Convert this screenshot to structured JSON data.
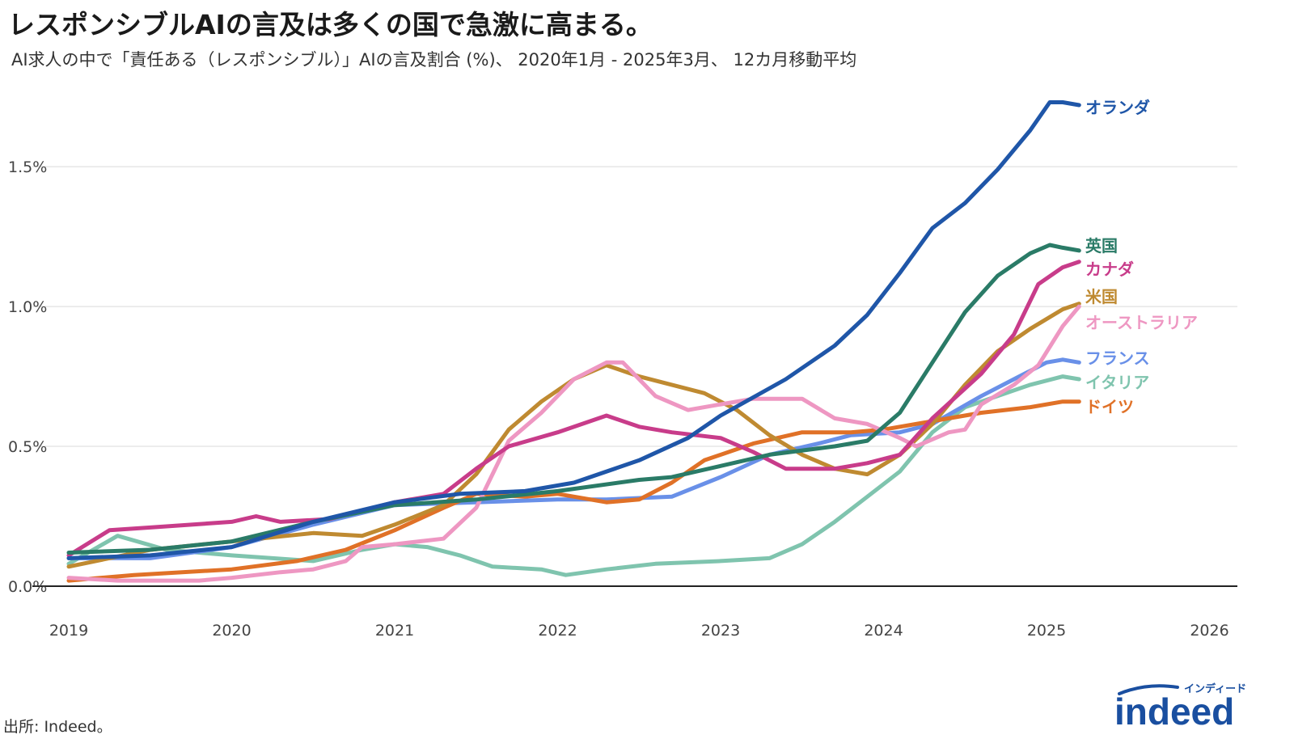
{
  "title": "レスポンシブルAIの言及は多くの国で急激に高まる。",
  "subtitle": "AI求人の中で「責任ある（レスポンシブル）」AIの言及割合 (%)、 2020年1月 - 2025年3月、 12カ月移動平均",
  "source": "出所: Indeed。",
  "logo": {
    "text": "indeed",
    "kana": "インディード",
    "color": "#1a4fa0"
  },
  "chart_data": {
    "type": "line",
    "x_ticks": [
      "2019",
      "2020",
      "2021",
      "2022",
      "2023",
      "2024",
      "2025",
      "2026"
    ],
    "y_ticks": [
      {
        "value": 0.0,
        "label": "0.0%"
      },
      {
        "value": 0.5,
        "label": "0.5%"
      },
      {
        "value": 1.0,
        "label": "1.0%"
      },
      {
        "value": 1.5,
        "label": "1.5%"
      }
    ],
    "xlim": [
      2019.0,
      2026.2
    ],
    "ylim": [
      0,
      1.8
    ],
    "grid": true,
    "legend": "direct labels at line ends",
    "series": [
      {
        "name": "オランダ",
        "color": "#1f56a8",
        "points": [
          [
            2019.0,
            0.1
          ],
          [
            2019.5,
            0.11
          ],
          [
            2020.0,
            0.14
          ],
          [
            2020.5,
            0.23
          ],
          [
            2021.0,
            0.3
          ],
          [
            2021.4,
            0.33
          ],
          [
            2021.8,
            0.34
          ],
          [
            2022.1,
            0.37
          ],
          [
            2022.5,
            0.45
          ],
          [
            2022.8,
            0.53
          ],
          [
            2023.0,
            0.61
          ],
          [
            2023.4,
            0.74
          ],
          [
            2023.7,
            0.86
          ],
          [
            2023.9,
            0.97
          ],
          [
            2024.1,
            1.12
          ],
          [
            2024.3,
            1.28
          ],
          [
            2024.5,
            1.37
          ],
          [
            2024.7,
            1.49
          ],
          [
            2024.9,
            1.63
          ],
          [
            2025.02,
            1.73
          ],
          [
            2025.1,
            1.73
          ],
          [
            2025.2,
            1.72
          ]
        ]
      },
      {
        "name": "英国",
        "color": "#2a7b67",
        "points": [
          [
            2019.0,
            0.12
          ],
          [
            2019.5,
            0.13
          ],
          [
            2020.0,
            0.16
          ],
          [
            2020.5,
            0.23
          ],
          [
            2021.0,
            0.29
          ],
          [
            2021.5,
            0.31
          ],
          [
            2022.0,
            0.34
          ],
          [
            2022.5,
            0.38
          ],
          [
            2022.7,
            0.39
          ],
          [
            2023.0,
            0.43
          ],
          [
            2023.3,
            0.47
          ],
          [
            2023.7,
            0.5
          ],
          [
            2023.9,
            0.52
          ],
          [
            2024.1,
            0.62
          ],
          [
            2024.3,
            0.8
          ],
          [
            2024.5,
            0.98
          ],
          [
            2024.7,
            1.11
          ],
          [
            2024.9,
            1.19
          ],
          [
            2025.02,
            1.22
          ],
          [
            2025.1,
            1.21
          ],
          [
            2025.2,
            1.2
          ]
        ]
      },
      {
        "name": "カナダ",
        "color": "#c83c8a",
        "points": [
          [
            2019.0,
            0.11
          ],
          [
            2019.25,
            0.2
          ],
          [
            2019.5,
            0.21
          ],
          [
            2020.0,
            0.23
          ],
          [
            2020.15,
            0.25
          ],
          [
            2020.3,
            0.23
          ],
          [
            2020.6,
            0.24
          ],
          [
            2020.8,
            0.27
          ],
          [
            2021.0,
            0.3
          ],
          [
            2021.3,
            0.33
          ],
          [
            2021.5,
            0.42
          ],
          [
            2021.7,
            0.5
          ],
          [
            2022.0,
            0.55
          ],
          [
            2022.3,
            0.61
          ],
          [
            2022.5,
            0.57
          ],
          [
            2022.7,
            0.55
          ],
          [
            2023.0,
            0.53
          ],
          [
            2023.2,
            0.48
          ],
          [
            2023.4,
            0.42
          ],
          [
            2023.7,
            0.42
          ],
          [
            2023.9,
            0.44
          ],
          [
            2024.1,
            0.47
          ],
          [
            2024.3,
            0.6
          ],
          [
            2024.6,
            0.76
          ],
          [
            2024.8,
            0.9
          ],
          [
            2024.95,
            1.08
          ],
          [
            2025.1,
            1.14
          ],
          [
            2025.2,
            1.16
          ]
        ]
      },
      {
        "name": "米国",
        "color": "#bf8a31",
        "points": [
          [
            2019.0,
            0.07
          ],
          [
            2019.5,
            0.13
          ],
          [
            2020.0,
            0.16
          ],
          [
            2020.5,
            0.19
          ],
          [
            2020.8,
            0.18
          ],
          [
            2021.0,
            0.22
          ],
          [
            2021.3,
            0.29
          ],
          [
            2021.5,
            0.4
          ],
          [
            2021.7,
            0.56
          ],
          [
            2021.9,
            0.66
          ],
          [
            2022.1,
            0.74
          ],
          [
            2022.3,
            0.79
          ],
          [
            2022.5,
            0.75
          ],
          [
            2022.7,
            0.72
          ],
          [
            2022.9,
            0.69
          ],
          [
            2023.1,
            0.63
          ],
          [
            2023.3,
            0.54
          ],
          [
            2023.5,
            0.47
          ],
          [
            2023.7,
            0.42
          ],
          [
            2023.9,
            0.4
          ],
          [
            2024.1,
            0.47
          ],
          [
            2024.3,
            0.58
          ],
          [
            2024.5,
            0.72
          ],
          [
            2024.7,
            0.84
          ],
          [
            2024.9,
            0.92
          ],
          [
            2025.1,
            0.99
          ],
          [
            2025.2,
            1.01
          ]
        ]
      },
      {
        "name": "オーストラリア",
        "color": "#ee97c2",
        "points": [
          [
            2019.0,
            0.03
          ],
          [
            2019.3,
            0.02
          ],
          [
            2019.8,
            0.02
          ],
          [
            2020.0,
            0.03
          ],
          [
            2020.3,
            0.05
          ],
          [
            2020.5,
            0.06
          ],
          [
            2020.7,
            0.09
          ],
          [
            2020.8,
            0.14
          ],
          [
            2021.0,
            0.15
          ],
          [
            2021.3,
            0.17
          ],
          [
            2021.5,
            0.28
          ],
          [
            2021.7,
            0.52
          ],
          [
            2021.9,
            0.62
          ],
          [
            2022.1,
            0.74
          ],
          [
            2022.3,
            0.8
          ],
          [
            2022.4,
            0.8
          ],
          [
            2022.6,
            0.68
          ],
          [
            2022.8,
            0.63
          ],
          [
            2023.0,
            0.65
          ],
          [
            2023.2,
            0.67
          ],
          [
            2023.5,
            0.67
          ],
          [
            2023.7,
            0.6
          ],
          [
            2023.9,
            0.58
          ],
          [
            2024.1,
            0.53
          ],
          [
            2024.2,
            0.5
          ],
          [
            2024.4,
            0.55
          ],
          [
            2024.5,
            0.56
          ],
          [
            2024.6,
            0.65
          ],
          [
            2024.8,
            0.72
          ],
          [
            2024.95,
            0.79
          ],
          [
            2025.1,
            0.93
          ],
          [
            2025.2,
            1.0
          ]
        ]
      },
      {
        "name": "フランス",
        "color": "#6990e8",
        "points": [
          [
            2019.0,
            0.1
          ],
          [
            2019.5,
            0.1
          ],
          [
            2020.0,
            0.14
          ],
          [
            2020.5,
            0.22
          ],
          [
            2021.0,
            0.29
          ],
          [
            2021.5,
            0.3
          ],
          [
            2022.0,
            0.31
          ],
          [
            2022.3,
            0.31
          ],
          [
            2022.7,
            0.32
          ],
          [
            2023.0,
            0.39
          ],
          [
            2023.3,
            0.47
          ],
          [
            2023.6,
            0.51
          ],
          [
            2023.8,
            0.54
          ],
          [
            2024.1,
            0.55
          ],
          [
            2024.3,
            0.58
          ],
          [
            2024.6,
            0.68
          ],
          [
            2024.8,
            0.74
          ],
          [
            2025.0,
            0.8
          ],
          [
            2025.1,
            0.81
          ],
          [
            2025.2,
            0.8
          ]
        ]
      },
      {
        "name": "イタリア",
        "color": "#7fc4ae",
        "points": [
          [
            2019.0,
            0.08
          ],
          [
            2019.3,
            0.18
          ],
          [
            2019.6,
            0.13
          ],
          [
            2020.0,
            0.11
          ],
          [
            2020.5,
            0.09
          ],
          [
            2020.8,
            0.13
          ],
          [
            2021.0,
            0.15
          ],
          [
            2021.2,
            0.14
          ],
          [
            2021.4,
            0.11
          ],
          [
            2021.6,
            0.07
          ],
          [
            2021.9,
            0.06
          ],
          [
            2022.05,
            0.04
          ],
          [
            2022.3,
            0.06
          ],
          [
            2022.6,
            0.08
          ],
          [
            2023.0,
            0.09
          ],
          [
            2023.3,
            0.1
          ],
          [
            2023.5,
            0.15
          ],
          [
            2023.7,
            0.23
          ],
          [
            2023.9,
            0.32
          ],
          [
            2024.1,
            0.41
          ],
          [
            2024.3,
            0.55
          ],
          [
            2024.5,
            0.64
          ],
          [
            2024.7,
            0.68
          ],
          [
            2024.9,
            0.72
          ],
          [
            2025.1,
            0.75
          ],
          [
            2025.2,
            0.74
          ]
        ]
      },
      {
        "name": "ドイツ",
        "color": "#e07127",
        "points": [
          [
            2019.0,
            0.02
          ],
          [
            2019.4,
            0.04
          ],
          [
            2020.0,
            0.06
          ],
          [
            2020.4,
            0.09
          ],
          [
            2020.7,
            0.13
          ],
          [
            2021.0,
            0.2
          ],
          [
            2021.3,
            0.28
          ],
          [
            2021.5,
            0.33
          ],
          [
            2021.8,
            0.32
          ],
          [
            2022.0,
            0.33
          ],
          [
            2022.3,
            0.3
          ],
          [
            2022.5,
            0.31
          ],
          [
            2022.7,
            0.37
          ],
          [
            2022.9,
            0.45
          ],
          [
            2023.2,
            0.51
          ],
          [
            2023.5,
            0.55
          ],
          [
            2023.8,
            0.55
          ],
          [
            2024.0,
            0.56
          ],
          [
            2024.3,
            0.59
          ],
          [
            2024.6,
            0.62
          ],
          [
            2024.9,
            0.64
          ],
          [
            2025.1,
            0.66
          ],
          [
            2025.2,
            0.66
          ]
        ]
      }
    ]
  }
}
